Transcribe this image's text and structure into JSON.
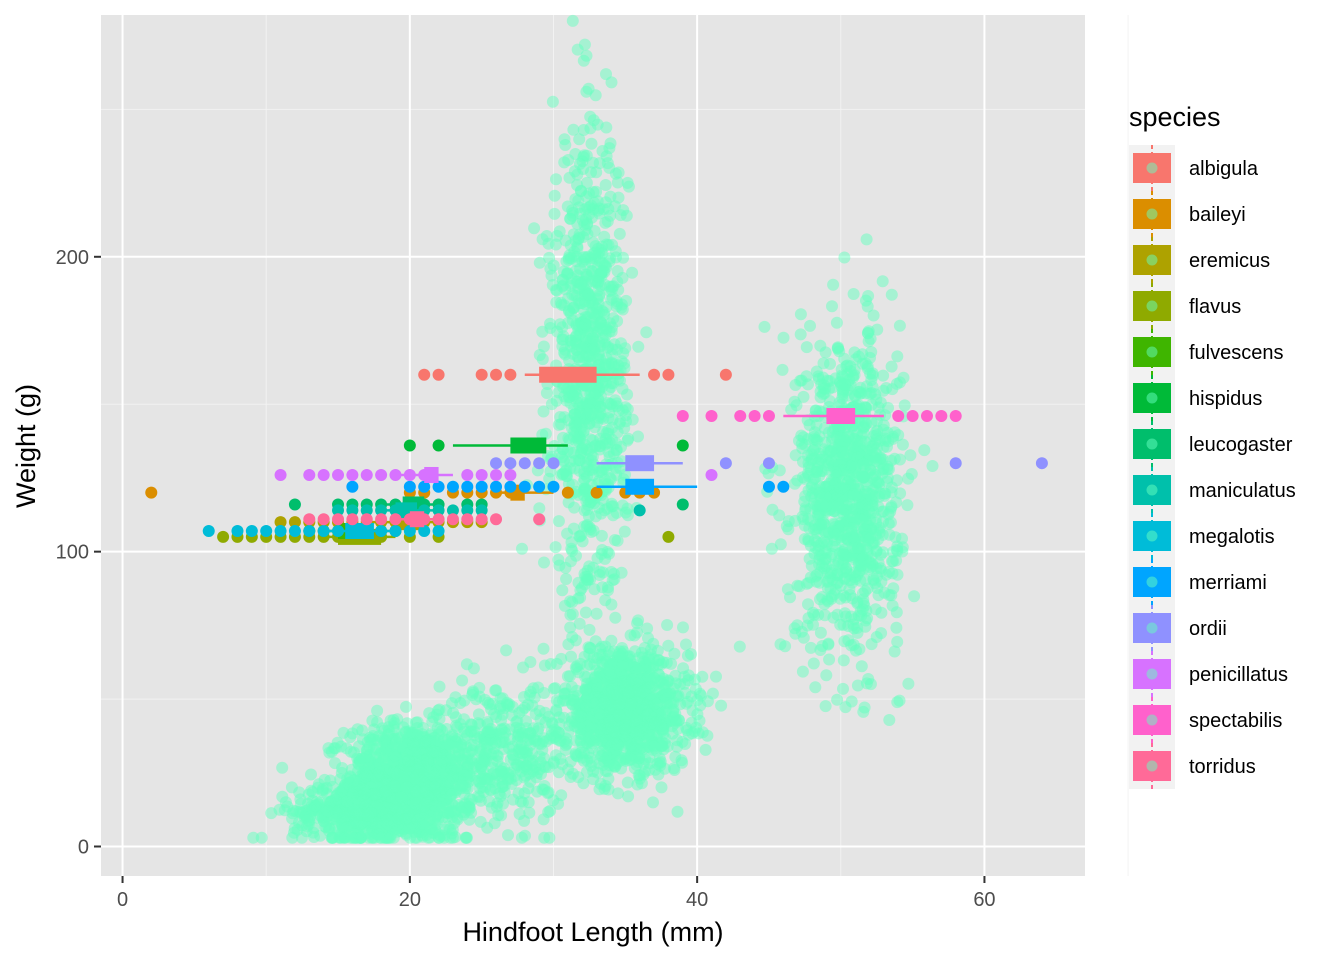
{
  "chart_data": {
    "type": "scatter",
    "title": "",
    "xlabel": "Hindfoot Length (mm)",
    "ylabel": "Weight (g)",
    "xlim": [
      -1.5,
      67
    ],
    "ylim": [
      -10,
      282
    ],
    "x_ticks": [
      0,
      20,
      40,
      60
    ],
    "x_tick_labels": [
      "0",
      "20",
      "40",
      "60"
    ],
    "y_ticks": [
      0,
      100,
      200
    ],
    "y_tick_labels": [
      "0",
      "100",
      "200"
    ],
    "grid": true,
    "background": "#e5e5e5",
    "legend": {
      "title": "species",
      "position": "right",
      "entries": [
        "albigula",
        "baileyi",
        "eremicus",
        "flavus",
        "fulvescens",
        "hispidus",
        "leucogaster",
        "maniculatus",
        "megalotis",
        "merriami",
        "ordii",
        "penicillatus",
        "spectabilis",
        "torridus"
      ]
    },
    "scatter_layer": {
      "color": "#66FFC0",
      "opacity": 0.5
    },
    "clusters": [
      {
        "x_center": 20,
        "x_sd": 2.2,
        "y_center": 22,
        "y_sd": 10,
        "n": 1100
      },
      {
        "x_center": 16.5,
        "x_sd": 2.3,
        "y_center": 12,
        "y_sd": 5,
        "n": 450
      },
      {
        "x_center": 26.5,
        "x_sd": 2.2,
        "y_center": 32,
        "y_sd": 12,
        "n": 350
      },
      {
        "x_center": 35,
        "x_sd": 2.2,
        "y_center": 46,
        "y_sd": 10,
        "n": 1100
      },
      {
        "x_center": 32.5,
        "x_sd": 1.3,
        "y_center": 160,
        "y_sd": 40,
        "n": 900
      },
      {
        "x_center": 50.5,
        "x_sd": 1.8,
        "y_center": 120,
        "y_sd": 26,
        "n": 1000
      }
    ],
    "series": [
      {
        "name": "albigula",
        "color": "#F8766D",
        "y": 160,
        "x": [
          21,
          22,
          25,
          26,
          27,
          37,
          38,
          42
        ],
        "box": [
          29,
          33
        ],
        "whisker": [
          28,
          36
        ]
      },
      {
        "name": "baileyi",
        "color": "#DB8E00",
        "y": 120,
        "x": [
          2,
          20,
          21,
          23,
          24,
          25,
          26,
          27,
          31,
          33,
          35,
          36,
          37
        ],
        "box": [
          27,
          28
        ],
        "whisker": [
          26,
          30
        ]
      },
      {
        "name": "eremicus",
        "color": "#AEA200",
        "y": 110,
        "x": [
          11,
          12,
          13,
          14,
          15,
          16,
          17,
          18,
          19,
          20,
          21,
          22,
          23,
          24,
          25
        ],
        "box": [
          19,
          21
        ],
        "whisker": [
          17,
          22
        ]
      },
      {
        "name": "flavus",
        "color": "#8FAA00",
        "y": 105,
        "x": [
          7,
          8,
          9,
          10,
          11,
          12,
          13,
          14,
          15,
          16,
          17,
          18,
          20,
          22,
          38
        ],
        "box": [
          15,
          18
        ],
        "whisker": [
          14,
          19
        ]
      },
      {
        "name": "fulvescens",
        "color": "#3FB500",
        "y": 107,
        "x": [
          13,
          14,
          15,
          16,
          17,
          18,
          19
        ],
        "box": [
          15,
          17
        ],
        "whisker": [
          14,
          18.5
        ]
      },
      {
        "name": "hispidus",
        "color": "#00BA38",
        "y": 136,
        "x": [
          20,
          22,
          39
        ],
        "box": [
          27,
          29.5
        ],
        "whisker": [
          23,
          31
        ]
      },
      {
        "name": "leucogaster",
        "color": "#00BE6C",
        "y": 116,
        "x": [
          12,
          15,
          16,
          17,
          18,
          19,
          20,
          21,
          22,
          24,
          25,
          39
        ],
        "box": [
          19.5,
          21
        ],
        "whisker": [
          18,
          22
        ]
      },
      {
        "name": "maniculatus",
        "color": "#00C0AB",
        "y": 114,
        "x": [
          15,
          16,
          17,
          18,
          19,
          20,
          21,
          22,
          23,
          24,
          25,
          36
        ],
        "box": [
          19,
          20.5
        ],
        "whisker": [
          18,
          22
        ]
      },
      {
        "name": "megalotis",
        "color": "#00BCD8",
        "y": 107,
        "x": [
          6,
          8,
          9,
          10,
          11,
          12,
          13,
          14,
          15,
          16,
          17,
          18,
          19,
          20,
          21,
          22
        ],
        "box": [
          15.5,
          17.5
        ],
        "whisker": [
          14,
          19
        ]
      },
      {
        "name": "merriami",
        "color": "#00A5FF",
        "y": 122,
        "x": [
          16,
          20,
          21,
          22,
          23,
          24,
          25,
          26,
          27,
          28,
          29,
          30,
          45,
          46
        ],
        "box": [
          35,
          37
        ],
        "whisker": [
          33,
          40
        ]
      },
      {
        "name": "ordii",
        "color": "#8F91FF",
        "y": 130,
        "x": [
          26,
          27,
          28,
          29,
          30,
          42,
          45,
          58,
          64
        ],
        "box": [
          35,
          37
        ],
        "whisker": [
          33,
          39
        ]
      },
      {
        "name": "penicillatus",
        "color": "#D772FF",
        "y": 126,
        "x": [
          11,
          13,
          14,
          15,
          16,
          17,
          18,
          19,
          20,
          21,
          24,
          25,
          26,
          27,
          41
        ],
        "box": [
          21,
          22
        ],
        "whisker": [
          19,
          23
        ]
      },
      {
        "name": "spectabilis",
        "color": "#FF61CC",
        "y": 146,
        "x": [
          39,
          41,
          43,
          44,
          45,
          54,
          55,
          56,
          57,
          58
        ],
        "box": [
          49,
          51
        ],
        "whisker": [
          46,
          53
        ]
      },
      {
        "name": "torridus",
        "color": "#FF6A98",
        "y": 111,
        "x": [
          13,
          14,
          15,
          16,
          17,
          18,
          19,
          20,
          21,
          22,
          23,
          24,
          25,
          26,
          29
        ],
        "box": [
          20,
          21
        ],
        "whisker": [
          19,
          22
        ]
      }
    ]
  }
}
